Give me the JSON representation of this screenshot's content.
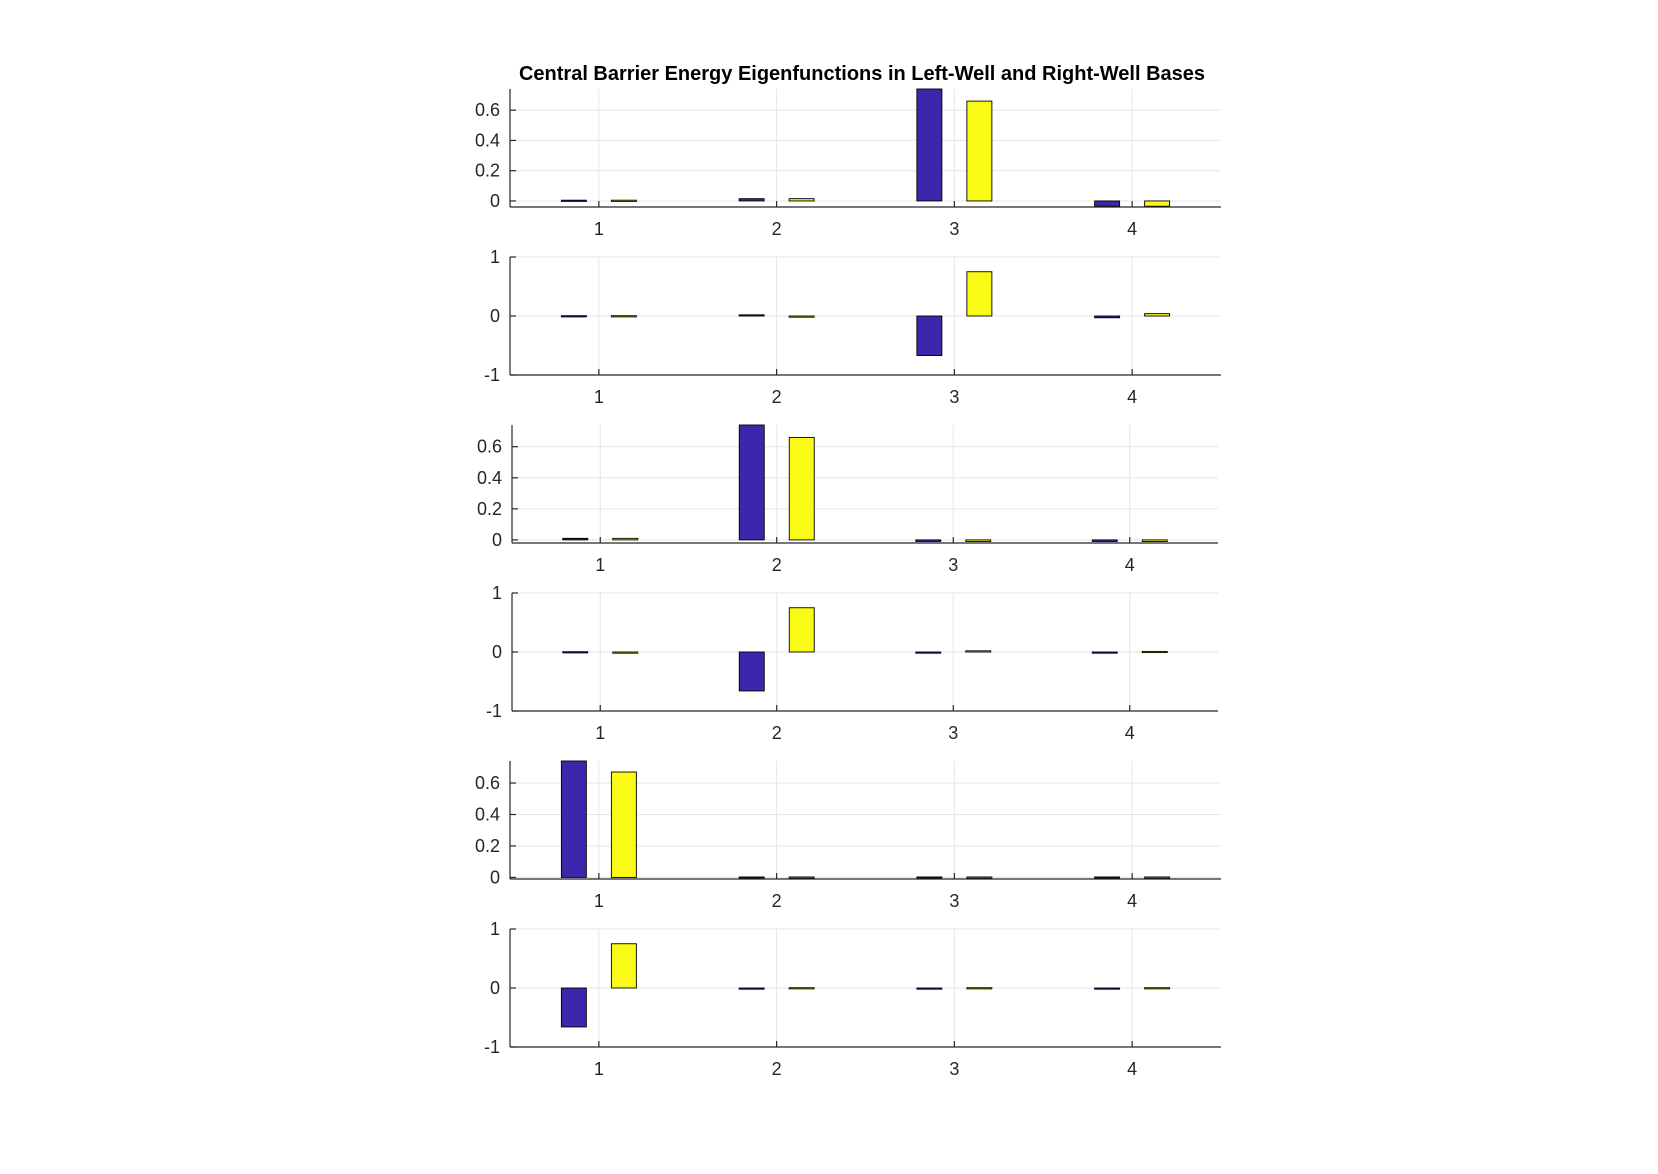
{
  "title": "Central Barrier Energy Eigenfunctions in Left-Well and Right-Well Bases",
  "colors": {
    "series_1": "#3c27ab",
    "series_2": "#f9fa15",
    "grid": "#e6e6e6",
    "axis": "#262626"
  },
  "chart_data": [
    {
      "type": "bar",
      "categories": [
        "1",
        "2",
        "3",
        "4"
      ],
      "series": [
        {
          "values": [
            0.005,
            0.015,
            0.74,
            -0.035
          ]
        },
        {
          "values": [
            0.005,
            0.015,
            0.66,
            -0.035
          ]
        }
      ],
      "ylim": [
        -0.04,
        0.74
      ],
      "yticks": [
        "0",
        "0.2",
        "0.4",
        "0.6"
      ],
      "grid": true
    },
    {
      "type": "bar",
      "categories": [
        "1",
        "2",
        "3",
        "4"
      ],
      "series": [
        {
          "values": [
            0.005,
            0.02,
            -0.67,
            -0.03
          ]
        },
        {
          "values": [
            0.005,
            -0.01,
            0.75,
            0.04
          ]
        }
      ],
      "ylim": [
        -1,
        1
      ],
      "yticks": [
        "-1",
        "0",
        "1"
      ],
      "grid": true
    },
    {
      "type": "bar",
      "categories": [
        "1",
        "2",
        "3",
        "4"
      ],
      "series": [
        {
          "values": [
            0.01,
            0.74,
            -0.01,
            -0.01
          ]
        },
        {
          "values": [
            0.01,
            0.66,
            -0.01,
            -0.01
          ]
        }
      ],
      "ylim": [
        -0.02,
        0.74
      ],
      "yticks": [
        "0",
        "0.2",
        "0.4",
        "0.6"
      ],
      "grid": true
    },
    {
      "type": "bar",
      "categories": [
        "1",
        "2",
        "3",
        "4"
      ],
      "series": [
        {
          "values": [
            0.005,
            -0.66,
            -0.02,
            -0.01
          ]
        },
        {
          "values": [
            -0.005,
            0.75,
            0.02,
            0.01
          ]
        }
      ],
      "ylim": [
        -1,
        1
      ],
      "yticks": [
        "-1",
        "0",
        "1"
      ],
      "grid": true
    },
    {
      "type": "bar",
      "categories": [
        "1",
        "2",
        "3",
        "4"
      ],
      "series": [
        {
          "values": [
            0.74,
            0.003,
            0.003,
            0.003
          ]
        },
        {
          "values": [
            0.67,
            0.003,
            0.003,
            0.003
          ]
        }
      ],
      "ylim": [
        -0.01,
        0.74
      ],
      "yticks": [
        "0",
        "0.2",
        "0.4",
        "0.6"
      ],
      "grid": true
    },
    {
      "type": "bar",
      "categories": [
        "1",
        "2",
        "3",
        "4"
      ],
      "series": [
        {
          "values": [
            -0.66,
            -0.005,
            -0.005,
            -0.005
          ]
        },
        {
          "values": [
            0.75,
            0.005,
            0.005,
            0.005
          ]
        }
      ],
      "ylim": [
        -1,
        1
      ],
      "yticks": [
        "-1",
        "0",
        "1"
      ],
      "grid": true
    }
  ]
}
